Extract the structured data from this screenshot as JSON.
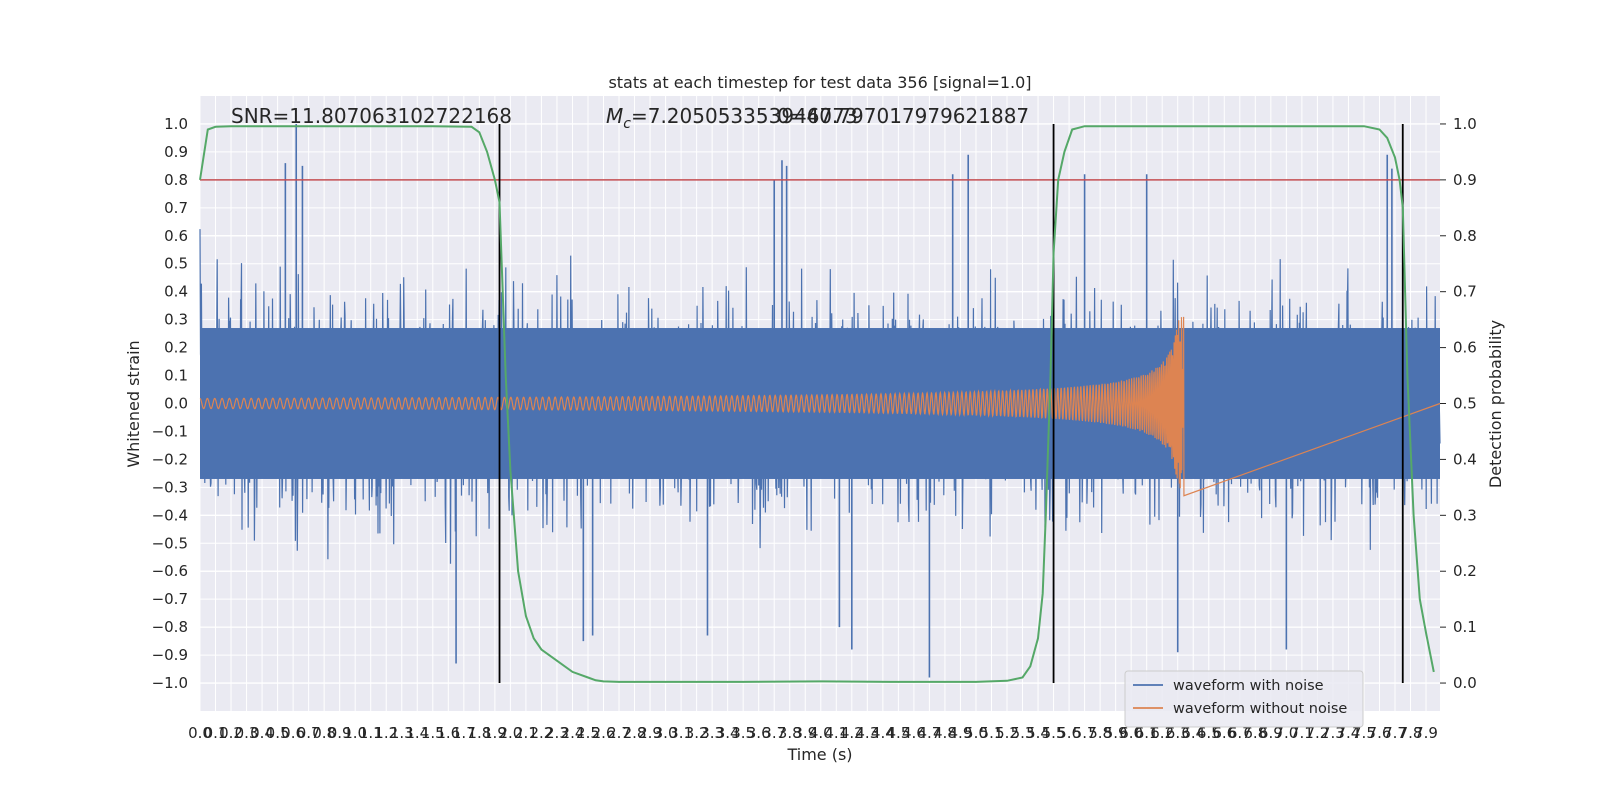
{
  "chart_data": {
    "type": "line",
    "title": "stats at each timestep for test data 356 [signal=1.0]",
    "xlabel": "Time (s)",
    "ylabel": "Whitened strain",
    "ylabel_right": "Detection probability",
    "xlim": [
      0,
      7.99
    ],
    "ylim": [
      -1.1,
      1.1
    ],
    "ylim_right": [
      -0.05,
      1.05
    ],
    "x_ticks": [
      "0.0",
      "0.1",
      "0.2",
      "0.3",
      "0.4",
      "0.5",
      "0.6",
      "0.7",
      "0.8",
      "0.9",
      "1.0",
      "1.1",
      "1.2",
      "1.3",
      "1.4",
      "1.5",
      "1.6",
      "1.7",
      "1.8",
      "1.9",
      "2.0",
      "2.1",
      "2.2",
      "2.3",
      "2.4",
      "2.5",
      "2.6",
      "2.7",
      "2.8",
      "2.9",
      "3.0",
      "3.1",
      "3.2",
      "3.3",
      "3.4",
      "3.5",
      "3.6",
      "3.7",
      "3.8",
      "3.9",
      "4.0",
      "4.1",
      "4.2",
      "4.3",
      "4.4",
      "4.5",
      "4.6",
      "4.7",
      "4.8",
      "4.9",
      "5.0",
      "5.1",
      "5.2",
      "5.3",
      "5.4",
      "5.5",
      "5.6",
      "5.7",
      "5.8",
      "5.9",
      "6.0",
      "6.1",
      "6.2",
      "6.3",
      "6.4",
      "6.5",
      "6.6",
      "6.7",
      "6.8",
      "6.9",
      "7.0",
      "7.1",
      "7.2",
      "7.3",
      "7.4",
      "7.5",
      "7.6",
      "7.7",
      "7.8",
      "7.9"
    ],
    "y_ticks_left": [
      "1.0",
      "0.9",
      "0.8",
      "0.7",
      "0.6",
      "0.5",
      "0.4",
      "0.3",
      "0.2",
      "0.1",
      "0.0",
      "−0.1",
      "−0.2",
      "−0.3",
      "−0.4",
      "−0.5",
      "−0.6",
      "−0.7",
      "−0.8",
      "−0.9",
      "−1.0"
    ],
    "y_ticks_right": [
      "1.0",
      "0.9",
      "0.8",
      "0.7",
      "0.6",
      "0.5",
      "0.4",
      "0.3",
      "0.2",
      "0.1",
      "0.0"
    ],
    "annotations": {
      "snr": "SNR=11.807063102722168",
      "mc_prefix": "M",
      "mc_sub": "c",
      "mc_value": "=7.205053353946773",
      "overlap": "0=40.797017979621887"
    },
    "threshold": 0.8,
    "detection_markers": [
      1.93,
      5.5,
      7.75
    ],
    "colors": {
      "noise": "#4c72b0",
      "clean": "#dd8452",
      "probability": "#55a868",
      "threshold": "#c44e52",
      "markers": "#000000",
      "plot_bg": "#eaeaf2",
      "grid": "#ffffff"
    },
    "series": [
      {
        "name": "waveform with noise",
        "description_values": "noise band",
        "band_core": 0.3,
        "peak_max": 1.0,
        "peak_min": -0.98,
        "spikes": [
          [
            0.55,
            0.86
          ],
          [
            0.62,
            1.0
          ],
          [
            0.66,
            0.85
          ],
          [
            3.7,
            0.8
          ],
          [
            3.75,
            0.87
          ],
          [
            3.78,
            0.85
          ],
          [
            4.85,
            0.82
          ],
          [
            4.95,
            0.89
          ],
          [
            5.7,
            0.82
          ],
          [
            6.1,
            0.82
          ],
          [
            7.65,
            0.89
          ],
          [
            7.68,
            0.84
          ],
          [
            1.65,
            -0.93
          ],
          [
            4.7,
            -0.98
          ],
          [
            6.3,
            -0.89
          ],
          [
            7.0,
            -0.88
          ],
          [
            2.47,
            -0.85
          ],
          [
            2.53,
            -0.83
          ],
          [
            3.27,
            -0.83
          ],
          [
            4.2,
            -0.88
          ],
          [
            4.12,
            -0.8
          ]
        ]
      },
      {
        "name": "waveform without noise",
        "x_start": 0.0,
        "x_merger": 6.34,
        "amplitude_start": 0.018,
        "amplitude_peak": 0.31,
        "amplitude_min_neg": -0.33
      },
      {
        "name": "detection probability",
        "axis": "right",
        "x": [
          0.0,
          0.05,
          0.1,
          0.2,
          0.5,
          1.0,
          1.5,
          1.75,
          1.8,
          1.85,
          1.9,
          1.93,
          1.97,
          2.0,
          2.05,
          2.1,
          2.15,
          2.2,
          2.3,
          2.4,
          2.5,
          2.55,
          2.6,
          2.7,
          3.0,
          3.5,
          4.0,
          4.5,
          5.0,
          5.2,
          5.3,
          5.35,
          5.4,
          5.43,
          5.45,
          5.48,
          5.5,
          5.53,
          5.57,
          5.62,
          5.7,
          6.0,
          6.5,
          7.0,
          7.5,
          7.6,
          7.65,
          7.7,
          7.73,
          7.75,
          7.78,
          7.82,
          7.86,
          7.9,
          7.95
        ],
        "y": [
          0.9,
          0.99,
          0.995,
          0.996,
          0.996,
          0.996,
          0.996,
          0.995,
          0.985,
          0.95,
          0.9,
          0.86,
          0.55,
          0.38,
          0.2,
          0.12,
          0.08,
          0.06,
          0.04,
          0.02,
          0.01,
          0.005,
          0.003,
          0.002,
          0.002,
          0.002,
          0.003,
          0.002,
          0.002,
          0.004,
          0.01,
          0.03,
          0.08,
          0.16,
          0.3,
          0.55,
          0.77,
          0.9,
          0.95,
          0.99,
          0.996,
          0.996,
          0.996,
          0.996,
          0.996,
          0.99,
          0.975,
          0.94,
          0.9,
          0.85,
          0.55,
          0.3,
          0.15,
          0.09,
          0.02
        ]
      }
    ],
    "legend": {
      "position": "lower-right",
      "entries": [
        "waveform with noise",
        "waveform without noise"
      ]
    }
  }
}
